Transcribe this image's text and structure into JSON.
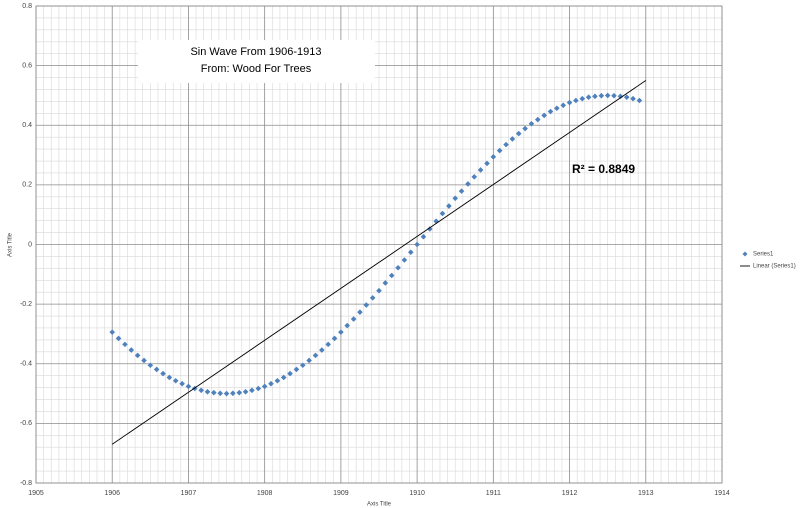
{
  "chart_data": {
    "type": "scatter",
    "title": "Sin Wave From 1906-1913",
    "subtitle": "From: Wood For Trees",
    "annotation": "R² = 0.8849",
    "x_label": "Axis Title",
    "y_label": "Axis Title",
    "xlim": [
      1905,
      1914
    ],
    "ylim": [
      -0.8,
      0.8
    ],
    "xticks": [
      1905,
      1906,
      1907,
      1908,
      1909,
      1910,
      1911,
      1912,
      1913,
      1914
    ],
    "yticks": [
      -0.8,
      -0.6,
      -0.4,
      -0.2,
      0,
      0.2,
      0.4,
      0.6,
      0.8
    ],
    "grid": true,
    "minor_grid": true,
    "legend": "right",
    "series": [
      {
        "name": "Series1",
        "color": "#4f81bd",
        "x": [
          1906,
          1906.083,
          1906.167,
          1906.25,
          1906.333,
          1906.417,
          1906.5,
          1906.583,
          1906.667,
          1906.75,
          1906.833,
          1906.917,
          1907,
          1907.083,
          1907.167,
          1907.25,
          1907.333,
          1907.417,
          1907.5,
          1907.583,
          1907.667,
          1907.75,
          1907.833,
          1907.917,
          1908,
          1908.083,
          1908.167,
          1908.25,
          1908.333,
          1908.417,
          1908.5,
          1908.583,
          1908.667,
          1908.75,
          1908.833,
          1908.917,
          1909,
          1909.083,
          1909.167,
          1909.25,
          1909.333,
          1909.417,
          1909.5,
          1909.583,
          1909.667,
          1909.75,
          1909.833,
          1909.917,
          1910,
          1910.083,
          1910.167,
          1910.25,
          1910.333,
          1910.417,
          1910.5,
          1910.583,
          1910.667,
          1910.75,
          1910.833,
          1910.917,
          1911,
          1911.083,
          1911.167,
          1911.25,
          1911.333,
          1911.417,
          1911.5,
          1911.583,
          1911.667,
          1911.75,
          1911.833,
          1911.917,
          1912,
          1912.083,
          1912.167,
          1912.25,
          1912.333,
          1912.417,
          1912.5,
          1912.583,
          1912.667,
          1912.75,
          1912.833,
          1912.917
        ],
        "values": [
          -0.294,
          -0.315,
          -0.335,
          -0.354,
          -0.372,
          -0.389,
          -0.405,
          -0.419,
          -0.433,
          -0.446,
          -0.457,
          -0.467,
          -0.476,
          -0.483,
          -0.489,
          -0.494,
          -0.497,
          -0.499,
          -0.5,
          -0.499,
          -0.497,
          -0.494,
          -0.489,
          -0.483,
          -0.476,
          -0.467,
          -0.457,
          -0.446,
          -0.433,
          -0.419,
          -0.405,
          -0.389,
          -0.372,
          -0.354,
          -0.335,
          -0.315,
          -0.294,
          -0.272,
          -0.25,
          -0.227,
          -0.203,
          -0.179,
          -0.155,
          -0.129,
          -0.104,
          -0.078,
          -0.052,
          -0.026,
          0,
          0.026,
          0.052,
          0.078,
          0.104,
          0.129,
          0.155,
          0.179,
          0.203,
          0.227,
          0.25,
          0.272,
          0.294,
          0.315,
          0.335,
          0.354,
          0.372,
          0.389,
          0.405,
          0.419,
          0.433,
          0.446,
          0.457,
          0.467,
          0.476,
          0.483,
          0.489,
          0.494,
          0.497,
          0.499,
          0.5,
          0.499,
          0.497,
          0.494,
          0.489,
          0.483
        ]
      },
      {
        "name": "Linear (Series1)",
        "color": "#000000",
        "line": true,
        "x": [
          1906,
          1913
        ],
        "values": [
          -0.67,
          0.55
        ]
      }
    ]
  }
}
